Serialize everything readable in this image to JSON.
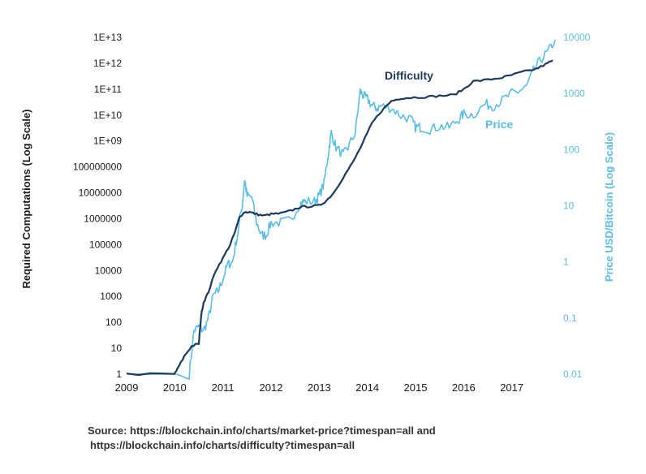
{
  "chart_data": {
    "type": "line",
    "xlim": [
      2009,
      2018
    ],
    "x_ticks": [
      "2009",
      "2010",
      "2011",
      "2012",
      "2013",
      "2014",
      "2015",
      "2016",
      "2017"
    ],
    "y_left": {
      "label": "Required Computations (Log Scale)",
      "scale": "log",
      "ticks": [
        "1",
        "10",
        "100",
        "1000",
        "10000",
        "100000",
        "1000000",
        "10000000",
        "100000000",
        "1E+09",
        "1E+10",
        "1E+11",
        "1E+12",
        "1E+13"
      ]
    },
    "y_right": {
      "label": "Price USD/Bitcoin (Log Scale)",
      "scale": "log",
      "ticks": [
        "0.01",
        "0.1",
        "1",
        "10",
        "100",
        "1000",
        "10000"
      ]
    },
    "colors": {
      "difficulty": "#1b3a5c",
      "price": "#5bbde6",
      "axis_text": "#1a1a1a"
    },
    "grid": false,
    "series": [
      {
        "name": "Difficulty",
        "axis": "left",
        "x": [
          2009.0,
          2009.99,
          2010.05,
          2010.2,
          2010.35,
          2010.5,
          2010.55,
          2010.6,
          2010.7,
          2010.85,
          2011.0,
          2011.15,
          2011.25,
          2011.35,
          2011.45,
          2011.55,
          2011.7,
          2011.85,
          2012.0,
          2012.2,
          2012.4,
          2012.6,
          2012.8,
          2013.0,
          2013.15,
          2013.3,
          2013.5,
          2013.7,
          2013.9,
          2014.1,
          2014.3,
          2014.5,
          2014.7,
          2014.9,
          2015.2,
          2015.5,
          2015.8,
          2016.0,
          2016.2,
          2016.5,
          2016.8,
          2017.0,
          2017.2,
          2017.5,
          2017.7,
          2017.85
        ],
        "values": [
          1,
          1,
          1.5,
          5,
          12,
          15,
          200,
          600,
          1500,
          10000,
          30000,
          100000,
          300000,
          1200000,
          1800000,
          1800000,
          1500000,
          1300000,
          1500000,
          1600000,
          2000000,
          2800000,
          3000000,
          3200000,
          5000000,
          10000000,
          40000000,
          150000000,
          800000000,
          5000000000,
          15000000000,
          35000000000,
          45000000000,
          47000000000,
          50000000000,
          55000000000,
          60000000000,
          100000000000,
          200000000000,
          230000000000,
          280000000000,
          350000000000,
          450000000000,
          600000000000,
          900000000000,
          1300000000000
        ]
      },
      {
        "name": "Price",
        "axis": "right",
        "x": [
          2009.0,
          2010.3,
          2010.4,
          2010.5,
          2010.6,
          2010.7,
          2010.8,
          2010.9,
          2011.0,
          2011.1,
          2011.2,
          2011.3,
          2011.4,
          2011.45,
          2011.5,
          2011.6,
          2011.7,
          2011.8,
          2011.9,
          2012.0,
          2012.2,
          2012.4,
          2012.6,
          2012.7,
          2012.9,
          2013.0,
          2013.1,
          2013.2,
          2013.25,
          2013.35,
          2013.5,
          2013.6,
          2013.75,
          2013.85,
          2013.92,
          2014.0,
          2014.1,
          2014.2,
          2014.3,
          2014.5,
          2014.7,
          2014.9,
          2015.0,
          2015.1,
          2015.3,
          2015.5,
          2015.7,
          2015.9,
          2016.0,
          2016.2,
          2016.45,
          2016.6,
          2016.8,
          2017.0,
          2017.15,
          2017.3,
          2017.45,
          2017.6,
          2017.75,
          2017.9
        ],
        "values": [
          0.01,
          0.01,
          0.06,
          0.07,
          0.06,
          0.1,
          0.25,
          0.3,
          0.5,
          0.9,
          1,
          3,
          10,
          30,
          15,
          14,
          5,
          3,
          3,
          5,
          5,
          5.5,
          11,
          12,
          12,
          15,
          25,
          100,
          200,
          110,
          80,
          110,
          200,
          1100,
          900,
          800,
          600,
          550,
          600,
          550,
          400,
          350,
          250,
          250,
          230,
          260,
          250,
          350,
          430,
          420,
          650,
          600,
          750,
          1000,
          1100,
          1300,
          2500,
          4000,
          5500,
          9000
        ]
      }
    ],
    "annotations": [
      {
        "text": "Difficulty",
        "series": "Difficulty"
      },
      {
        "text": "Price",
        "series": "Price"
      }
    ]
  },
  "source": {
    "line1": "Source: https://blockchain.info/charts/market-price?timespan=all and",
    "line2": "https://blockchain.info/charts/difficulty?timespan=all"
  }
}
